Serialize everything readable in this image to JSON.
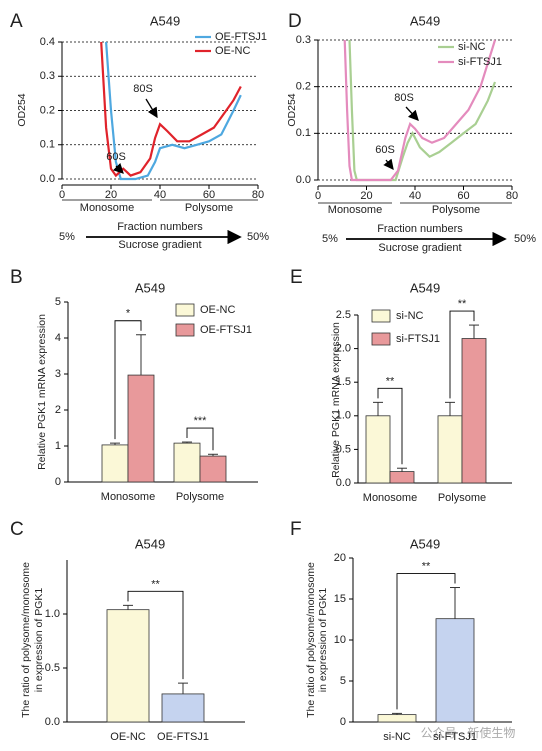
{
  "chart_data": [
    {
      "type": "line",
      "panel": "A",
      "title": "A549",
      "ylabel": "OD254",
      "series": [
        {
          "name": "OE-FTSJ1",
          "color": "#4ea8e0",
          "x": [
            18,
            20,
            22,
            24,
            30,
            35,
            38,
            40,
            45,
            50,
            55,
            60,
            65,
            70,
            73
          ],
          "values": [
            0.4,
            0.2,
            0.05,
            0.0,
            0.0,
            0.01,
            0.05,
            0.09,
            0.1,
            0.09,
            0.1,
            0.11,
            0.13,
            0.2,
            0.245
          ]
        },
        {
          "name": "OE-NC",
          "color": "#e0232b",
          "x": [
            16,
            18,
            20,
            22,
            25,
            28,
            32,
            36,
            38,
            40,
            43,
            47,
            52,
            57,
            62,
            67,
            70,
            73
          ],
          "values": [
            0.4,
            0.15,
            0.03,
            0.01,
            0.03,
            0.01,
            0.02,
            0.06,
            0.12,
            0.16,
            0.14,
            0.11,
            0.11,
            0.13,
            0.15,
            0.2,
            0.23,
            0.27
          ]
        }
      ],
      "xlim": [
        0,
        80
      ],
      "xticks": [
        0,
        20,
        40,
        60,
        80
      ],
      "ylim": [
        0,
        0.4
      ],
      "yticks": [
        {
          "value": 0,
          "label": "0.0"
        },
        0.1,
        0.2,
        0.3,
        0.4
      ],
      "grid": true,
      "annotations": [
        "60S",
        "80S"
      ],
      "regions": [
        "Monosome",
        "Polysome"
      ],
      "xlabel": "Fraction numbers",
      "gradient": {
        "start": "5%",
        "label": "Sucrose gradient",
        "end": "50%"
      }
    },
    {
      "type": "line",
      "panel": "D",
      "title": "A549",
      "ylabel": "OD254",
      "series": [
        {
          "name": "si-NC",
          "color": "#a9cf92",
          "x": [
            13,
            14,
            15,
            16,
            32,
            35,
            37,
            39,
            42,
            46,
            50,
            55,
            60,
            65,
            70,
            73
          ],
          "values": [
            0.3,
            0.15,
            0.02,
            0.0,
            0.0,
            0.05,
            0.08,
            0.1,
            0.07,
            0.05,
            0.06,
            0.08,
            0.1,
            0.12,
            0.17,
            0.21
          ]
        },
        {
          "name": "si-FTSJ1",
          "color": "#e48bbd",
          "x": [
            11,
            12,
            13,
            14,
            30,
            33,
            36,
            38,
            40,
            43,
            47,
            52,
            57,
            62,
            67,
            70,
            73
          ],
          "values": [
            0.3,
            0.15,
            0.03,
            0.0,
            0.0,
            0.02,
            0.09,
            0.12,
            0.11,
            0.09,
            0.08,
            0.09,
            0.12,
            0.15,
            0.2,
            0.25,
            0.3
          ]
        }
      ],
      "xlim": [
        0,
        80
      ],
      "xticks": [
        0,
        20,
        40,
        60,
        80
      ],
      "ylim": [
        0,
        0.3
      ],
      "yticks": [
        {
          "value": 0,
          "label": "0.0"
        },
        0.1,
        0.2,
        0.3
      ],
      "grid": true,
      "annotations": [
        "60S",
        "80S"
      ],
      "regions": [
        "Monosome",
        "Polysome"
      ],
      "xlabel": "Fraction numbers",
      "gradient": {
        "start": "5%",
        "label": "Sucrose gradient",
        "end": "50%"
      }
    },
    {
      "type": "bar",
      "panel": "B",
      "title": "A549",
      "ylabel": [
        "Relative PGK1 mRNA expression"
      ],
      "categories": [
        "Monosome",
        "Polysome"
      ],
      "series": [
        {
          "name": "OE-NC",
          "color": "#fbf8d7",
          "values": [
            1.03,
            1.08
          ],
          "errors": [
            0.05,
            0.03
          ]
        },
        {
          "name": "OE-FTSJ1",
          "color": "#e8999b",
          "values": [
            2.97,
            0.72
          ],
          "errors": [
            1.12,
            0.05
          ]
        }
      ],
      "significance": [
        "*",
        "***"
      ],
      "ylim": [
        0,
        5
      ],
      "yticks": [
        0,
        1,
        2,
        3,
        4,
        5
      ]
    },
    {
      "type": "bar",
      "panel": "E",
      "title": "A549",
      "ylabel": [
        "Relative PGK1 mRNA expression"
      ],
      "categories": [
        "Monosome",
        "Polysome"
      ],
      "series": [
        {
          "name": "si-NC",
          "color": "#fbf8d7",
          "values": [
            1.0,
            1.0
          ],
          "errors": [
            0.2,
            0.2
          ]
        },
        {
          "name": "si-FTSJ1",
          "color": "#e8999b",
          "values": [
            0.17,
            2.15
          ],
          "errors": [
            0.05,
            0.2
          ]
        }
      ],
      "significance": [
        "**",
        "**"
      ],
      "ylim": [
        0,
        2.5
      ],
      "yticks": [
        {
          "value": 0,
          "label": "0.0"
        },
        0.5,
        {
          "value": 1,
          "label": "1.0"
        },
        1.5,
        {
          "value": 2,
          "label": "2.0"
        },
        2.5
      ]
    },
    {
      "type": "bar",
      "panel": "C",
      "title": "A549",
      "ylabel": [
        "The ratio of polysome/monosome",
        "in expression of PGK1"
      ],
      "categories": [
        "OE-NC",
        "OE-FTSJ1"
      ],
      "series": [
        {
          "colors": [
            "#fbf8d7",
            "#c5d3ef"
          ],
          "values": [
            1.04,
            0.26
          ],
          "errors": [
            0.04,
            0.1
          ]
        }
      ],
      "significance": [
        "**"
      ],
      "ylim": [
        0,
        1.5
      ],
      "yticks": [
        {
          "value": 0,
          "label": "0.0"
        },
        0.5,
        {
          "value": 1,
          "label": "1.0"
        }
      ]
    },
    {
      "type": "bar",
      "panel": "F",
      "title": "A549",
      "ylabel": [
        "The ratio of polysome/monosome",
        "in expression of PGK1"
      ],
      "categories": [
        "si-NC",
        "si-FTSJ1"
      ],
      "series": [
        {
          "colors": [
            "#fbf8d7",
            "#c5d3ef"
          ],
          "values": [
            0.9,
            12.6
          ],
          "errors": [
            0.15,
            3.8
          ]
        }
      ],
      "significance": [
        "**"
      ],
      "ylim": [
        0,
        20
      ],
      "yticks": [
        0,
        5,
        10,
        15,
        20
      ]
    }
  ],
  "watermark": "公众号 · 新使生物"
}
